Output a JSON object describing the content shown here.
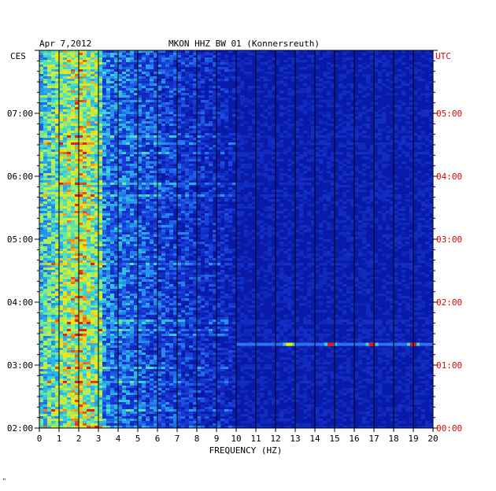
{
  "chart_data": {
    "type": "heatmap",
    "date": "Apr 7,2012",
    "title": "MKON HHZ BW 01 (Konnersreuth)",
    "xlabel": "FREQUENCY (HZ)",
    "left_axis_label": "CES",
    "right_axis_label": "UTC",
    "xlim": [
      0,
      20
    ],
    "x_ticks": [
      "0",
      "1",
      "2",
      "3",
      "4",
      "5",
      "6",
      "7",
      "8",
      "9",
      "10",
      "11",
      "12",
      "13",
      "14",
      "15",
      "16",
      "17",
      "18",
      "19",
      "20"
    ],
    "left_ticks": [
      "07:00",
      "06:00",
      "05:00",
      "04:00",
      "03:00",
      "02:00"
    ],
    "right_ticks": [
      "05:00",
      "04:00",
      "03:00",
      "02:00",
      "01:00",
      "00:00"
    ],
    "time_range_utc_hours": [
      0,
      6
    ],
    "noise_band_hz": [
      0,
      4
    ],
    "peak_band_hz": [
      1,
      3
    ],
    "spectral_line": {
      "time_utc_hours": 1.33,
      "freq_hz": [
        10,
        20
      ],
      "hot_spots_hz": [
        12.7,
        14.8,
        16.9,
        19.0
      ]
    },
    "colors": {
      "background": "#0a1aa8",
      "low": "#1830d0",
      "mid": "#33d6d6",
      "high": "#f4f000",
      "peak": "#e81818",
      "utc_text": "#e00000",
      "text": "#000000"
    },
    "grid": "vertical lines at each 1 Hz"
  },
  "footer_mark": "\""
}
